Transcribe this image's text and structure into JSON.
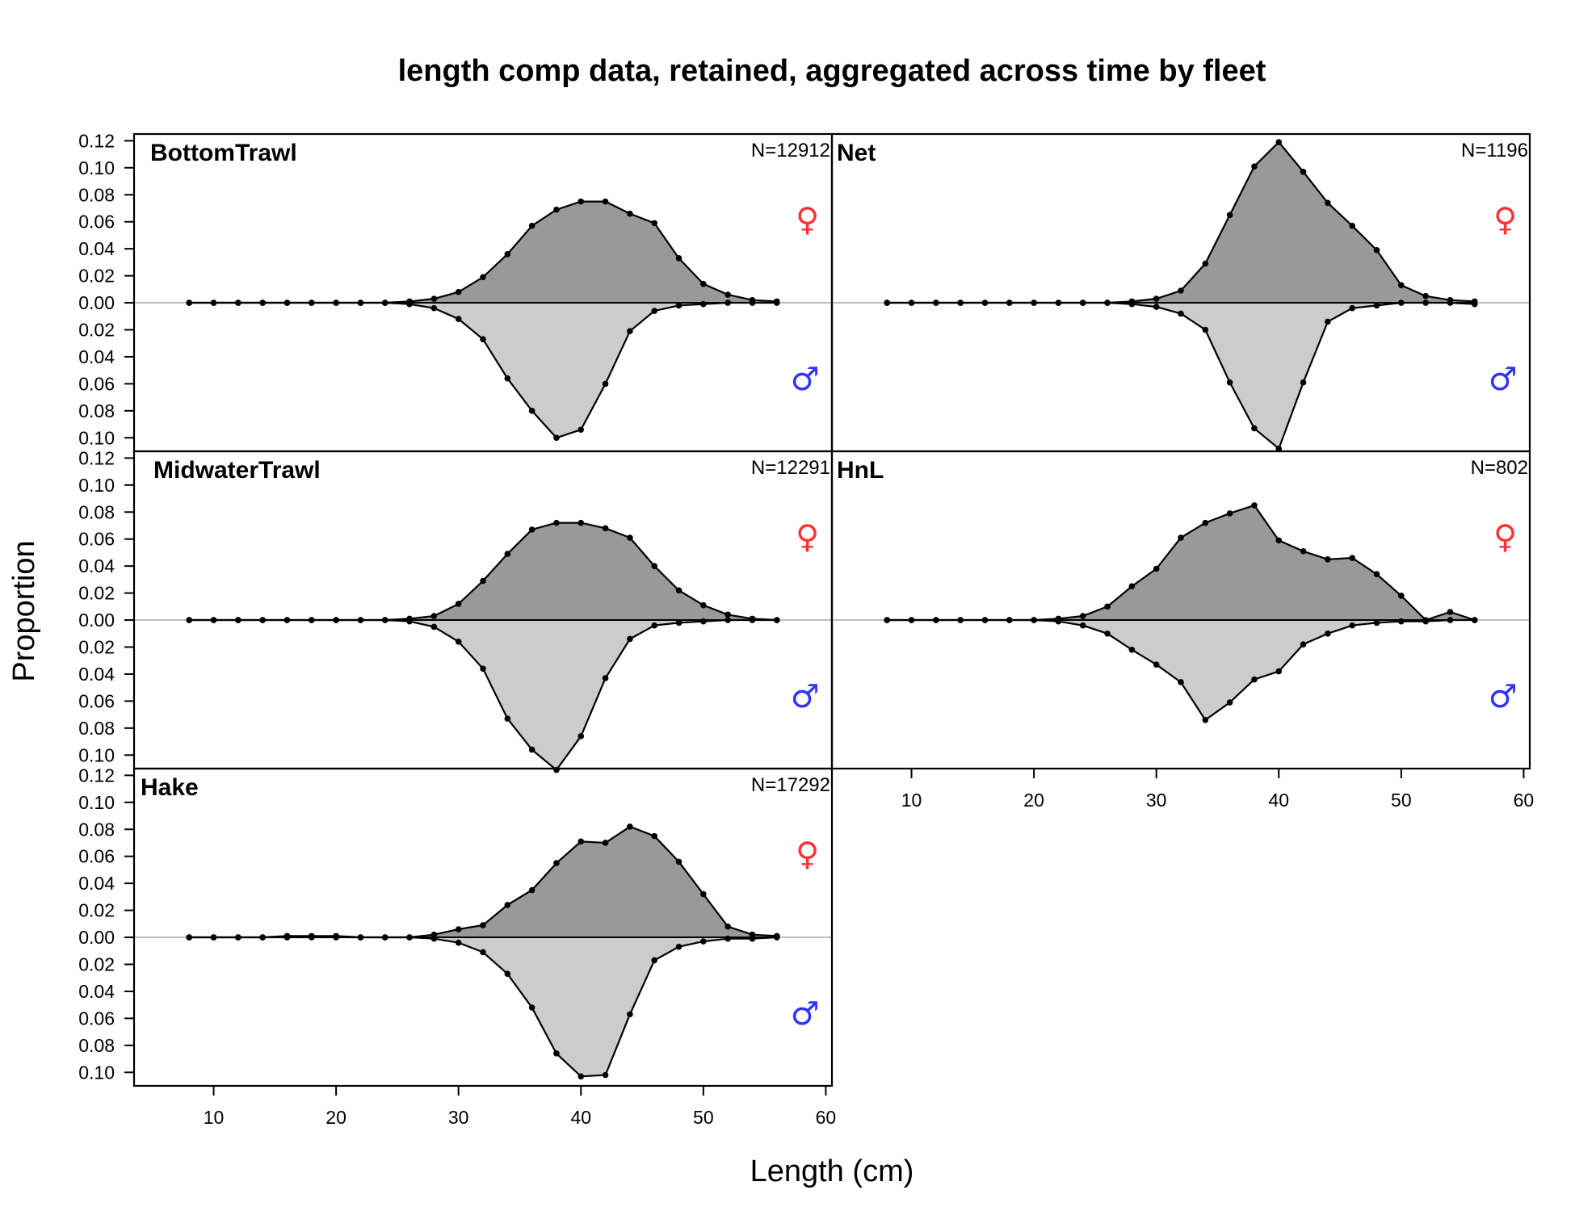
{
  "chart_data": {
    "type": "area",
    "title": "length comp data, retained, aggregated across time by fleet",
    "xlabel": "Length (cm)",
    "ylabel": "Proportion",
    "xlim": [
      3.5,
      60.5
    ],
    "ylim": [
      -0.11,
      0.125
    ],
    "x_ticks": [
      10,
      20,
      30,
      40,
      50,
      60
    ],
    "y_ticks": [
      -0.1,
      -0.08,
      -0.06,
      -0.04,
      -0.02,
      0.0,
      0.02,
      0.04,
      0.06,
      0.08,
      0.1,
      0.12
    ],
    "y_tick_labels": [
      "0.10",
      "0.08",
      "0.06",
      "0.04",
      "0.02",
      "0.00",
      "0.02",
      "0.04",
      "0.06",
      "0.08",
      "0.10",
      "0.12"
    ],
    "x_tick_labels": [
      "10",
      "20",
      "30",
      "40",
      "50",
      "60"
    ],
    "female_symbol": "♀",
    "male_symbol": "♂",
    "colors": {
      "female_fill": "#999999",
      "male_fill": "#cccccc",
      "line": "#000000",
      "zero_line": "#bebebe",
      "female_symbol": "#ff3333",
      "male_symbol": "#3333ff"
    },
    "length_bins": [
      8,
      10,
      12,
      14,
      16,
      18,
      20,
      22,
      24,
      26,
      28,
      30,
      32,
      34,
      36,
      38,
      40,
      42,
      44,
      46,
      48,
      50,
      52,
      54,
      56
    ],
    "panels": [
      {
        "name": "BottomTrawl",
        "n_label": "N=12912",
        "female": [
          0,
          0,
          0,
          0,
          0,
          0,
          0,
          0,
          0,
          0.001,
          0.003,
          0.008,
          0.019,
          0.036,
          0.057,
          0.069,
          0.075,
          0.075,
          0.066,
          0.059,
          0.033,
          0.014,
          0.006,
          0.002,
          0.001
        ],
        "male": [
          0,
          0,
          0,
          0,
          0,
          0,
          0,
          0,
          0,
          -0.001,
          -0.004,
          -0.012,
          -0.027,
          -0.056,
          -0.08,
          -0.1,
          -0.094,
          -0.06,
          -0.021,
          -0.006,
          -0.002,
          -0.001,
          0,
          0,
          0
        ]
      },
      {
        "name": "Net",
        "n_label": "N=1196",
        "female": [
          0,
          0,
          0,
          0,
          0,
          0,
          0,
          0,
          0,
          0,
          0.001,
          0.003,
          0.009,
          0.029,
          0.065,
          0.101,
          0.119,
          0.097,
          0.074,
          0.057,
          0.039,
          0.013,
          0.005,
          0.002,
          0.001
        ],
        "male": [
          0,
          0,
          0,
          0,
          0,
          0,
          0,
          0,
          0,
          0,
          -0.001,
          -0.003,
          -0.008,
          -0.02,
          -0.059,
          -0.093,
          -0.108,
          -0.059,
          -0.014,
          -0.004,
          -0.002,
          0,
          0,
          0,
          -0.001
        ]
      },
      {
        "name": "MidwaterTrawl",
        "n_label": "N=12291",
        "female": [
          0,
          0,
          0,
          0,
          0,
          0,
          0,
          0,
          0,
          0.001,
          0.003,
          0.012,
          0.029,
          0.049,
          0.067,
          0.072,
          0.072,
          0.068,
          0.061,
          0.04,
          0.022,
          0.011,
          0.004,
          0.001,
          0
        ],
        "male": [
          0,
          0,
          0,
          0,
          0,
          0,
          0,
          0,
          0,
          -0.001,
          -0.005,
          -0.016,
          -0.036,
          -0.073,
          -0.096,
          -0.111,
          -0.086,
          -0.043,
          -0.014,
          -0.004,
          -0.002,
          -0.001,
          0,
          0,
          0
        ]
      },
      {
        "name": "HnL",
        "n_label": "N=802",
        "female": [
          0,
          0,
          0,
          0,
          0,
          0,
          0,
          0.001,
          0.003,
          0.01,
          0.025,
          0.038,
          0.061,
          0.072,
          0.079,
          0.085,
          0.059,
          0.051,
          0.045,
          0.046,
          0.034,
          0.018,
          0,
          0.006,
          0
        ],
        "male": [
          0,
          0,
          0,
          0,
          0,
          0,
          0,
          -0.001,
          -0.004,
          -0.01,
          -0.022,
          -0.033,
          -0.046,
          -0.074,
          -0.061,
          -0.044,
          -0.038,
          -0.018,
          -0.01,
          -0.004,
          -0.002,
          -0.001,
          -0.001,
          0,
          0
        ]
      },
      {
        "name": "Hake",
        "n_label": "N=17292",
        "female": [
          0,
          0,
          0,
          0,
          0.001,
          0.001,
          0.001,
          0,
          0,
          0,
          0.002,
          0.006,
          0.009,
          0.024,
          0.035,
          0.055,
          0.071,
          0.07,
          0.082,
          0.075,
          0.056,
          0.032,
          0.008,
          0.002,
          0.001
        ],
        "male": [
          0,
          0,
          0,
          0,
          0,
          0,
          0,
          0,
          0,
          0,
          -0.001,
          -0.004,
          -0.011,
          -0.027,
          -0.052,
          -0.086,
          -0.103,
          -0.102,
          -0.057,
          -0.017,
          -0.007,
          -0.003,
          -0.001,
          -0.001,
          0
        ]
      }
    ]
  }
}
